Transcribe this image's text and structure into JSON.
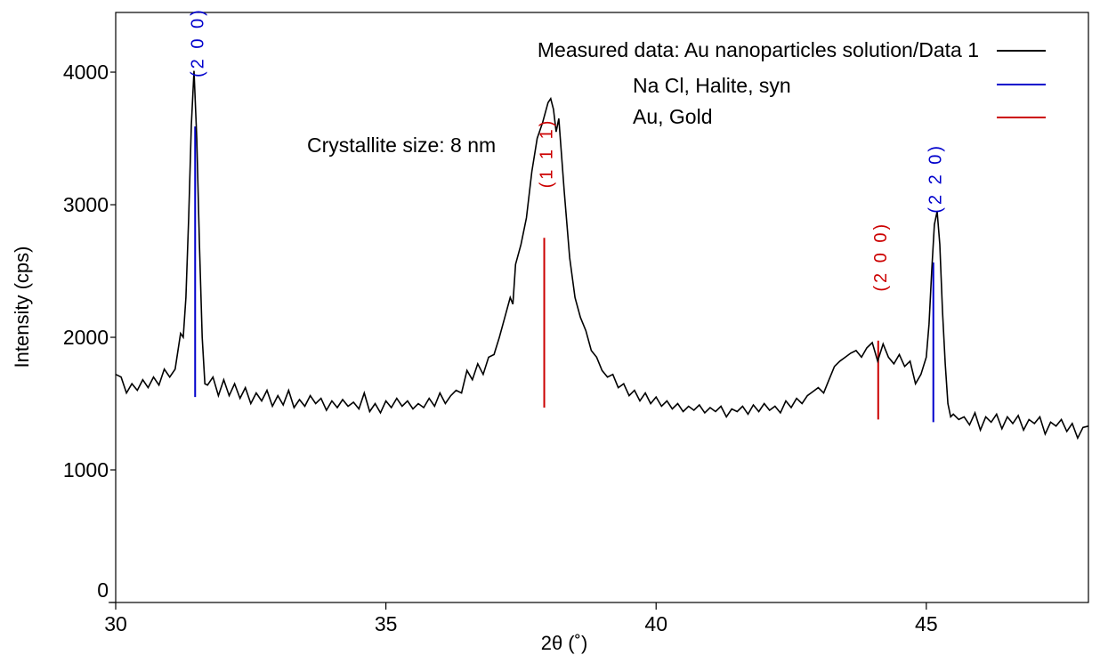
{
  "chart_data": {
    "type": "line",
    "title": "",
    "xlabel": "2θ (˚)",
    "ylabel": "Intensity (cps)",
    "xlim": [
      30,
      48
    ],
    "ylim": [
      0,
      4450
    ],
    "grid": false,
    "legend_placement": "top-right",
    "x_ticks": [
      30,
      35,
      40,
      45
    ],
    "x_tick_labels": [
      "30",
      "35",
      "40",
      "45"
    ],
    "y_ticks": [
      0,
      1000,
      2000,
      3000,
      4000
    ],
    "y_tick_labels": [
      "0",
      "1000",
      "2000",
      "3000",
      "4000"
    ],
    "annotation": "Crystallite size: 8 nm",
    "legend": [
      {
        "label": "Measured data: Au nanoparticles solution/Data 1",
        "color": "#000000"
      },
      {
        "label": "Na Cl, Halite, syn",
        "color": "#0000cc"
      },
      {
        "label": "Au, Gold",
        "color": "#cc0000"
      }
    ],
    "series": [
      {
        "name": "Measured data: Au nanoparticles solution/Data 1",
        "color": "#000000",
        "x": [
          30.0,
          30.1,
          30.2,
          30.3,
          30.4,
          30.5,
          30.6,
          30.7,
          30.8,
          30.9,
          31.0,
          31.1,
          31.2,
          31.25,
          31.3,
          31.35,
          31.4,
          31.45,
          31.5,
          31.55,
          31.6,
          31.65,
          31.7,
          31.8,
          31.9,
          32.0,
          32.1,
          32.2,
          32.3,
          32.4,
          32.5,
          32.6,
          32.7,
          32.8,
          32.9,
          33.0,
          33.1,
          33.2,
          33.3,
          33.4,
          33.5,
          33.6,
          33.7,
          33.8,
          33.9,
          34.0,
          34.1,
          34.2,
          34.3,
          34.4,
          34.5,
          34.6,
          34.7,
          34.8,
          34.9,
          35.0,
          35.1,
          35.2,
          35.3,
          35.4,
          35.5,
          35.6,
          35.7,
          35.8,
          35.9,
          36.0,
          36.1,
          36.2,
          36.3,
          36.4,
          36.5,
          36.6,
          36.7,
          36.8,
          36.9,
          37.0,
          37.1,
          37.2,
          37.3,
          37.35,
          37.4,
          37.5,
          37.6,
          37.7,
          37.8,
          37.9,
          38.0,
          38.05,
          38.1,
          38.15,
          38.2,
          38.3,
          38.4,
          38.5,
          38.6,
          38.7,
          38.8,
          38.9,
          39.0,
          39.1,
          39.2,
          39.3,
          39.4,
          39.5,
          39.6,
          39.7,
          39.8,
          39.9,
          40.0,
          40.1,
          40.2,
          40.3,
          40.4,
          40.5,
          40.6,
          40.7,
          40.8,
          40.9,
          41.0,
          41.1,
          41.2,
          41.3,
          41.4,
          41.5,
          41.6,
          41.7,
          41.8,
          41.9,
          42.0,
          42.1,
          42.2,
          42.3,
          42.4,
          42.5,
          42.6,
          42.7,
          42.8,
          42.9,
          43.0,
          43.1,
          43.2,
          43.3,
          43.4,
          43.5,
          43.6,
          43.7,
          43.8,
          43.9,
          44.0,
          44.1,
          44.2,
          44.3,
          44.4,
          44.5,
          44.6,
          44.7,
          44.8,
          44.9,
          45.0,
          45.05,
          45.1,
          45.15,
          45.2,
          45.25,
          45.3,
          45.35,
          45.4,
          45.45,
          45.5,
          45.6,
          45.7,
          45.8,
          45.9,
          46.0,
          46.1,
          46.2,
          46.3,
          46.4,
          46.5,
          46.6,
          46.7,
          46.8,
          46.9,
          47.0,
          47.1,
          47.2,
          47.3,
          47.4,
          47.5,
          47.6,
          47.7,
          47.8,
          47.9,
          48.0
        ],
        "y": [
          1720,
          1700,
          1580,
          1650,
          1600,
          1680,
          1620,
          1700,
          1640,
          1760,
          1700,
          1760,
          2030,
          2000,
          2300,
          2900,
          3600,
          4010,
          3500,
          2700,
          2000,
          1650,
          1640,
          1700,
          1560,
          1680,
          1560,
          1650,
          1540,
          1620,
          1500,
          1580,
          1520,
          1600,
          1480,
          1560,
          1490,
          1600,
          1470,
          1530,
          1480,
          1560,
          1500,
          1540,
          1450,
          1520,
          1470,
          1530,
          1480,
          1510,
          1460,
          1580,
          1440,
          1500,
          1430,
          1520,
          1470,
          1540,
          1480,
          1520,
          1460,
          1500,
          1470,
          1540,
          1480,
          1580,
          1500,
          1560,
          1600,
          1580,
          1750,
          1680,
          1800,
          1720,
          1850,
          1870,
          2000,
          2150,
          2300,
          2250,
          2550,
          2700,
          2900,
          3250,
          3500,
          3620,
          3770,
          3800,
          3720,
          3550,
          3650,
          3100,
          2600,
          2300,
          2150,
          2050,
          1900,
          1850,
          1750,
          1700,
          1720,
          1620,
          1650,
          1560,
          1600,
          1520,
          1580,
          1500,
          1550,
          1480,
          1520,
          1460,
          1500,
          1440,
          1480,
          1450,
          1490,
          1430,
          1470,
          1440,
          1480,
          1400,
          1460,
          1440,
          1480,
          1420,
          1490,
          1440,
          1500,
          1450,
          1480,
          1430,
          1520,
          1470,
          1540,
          1500,
          1560,
          1590,
          1620,
          1580,
          1680,
          1780,
          1820,
          1850,
          1880,
          1900,
          1850,
          1920,
          1960,
          1820,
          1950,
          1850,
          1800,
          1870,
          1780,
          1820,
          1650,
          1720,
          1850,
          2100,
          2500,
          2850,
          2950,
          2700,
          2200,
          1800,
          1500,
          1400,
          1420,
          1380,
          1400,
          1340,
          1430,
          1300,
          1400,
          1360,
          1420,
          1310,
          1400,
          1350,
          1410,
          1300,
          1380,
          1350,
          1400,
          1270,
          1360,
          1330,
          1380,
          1290,
          1350,
          1240,
          1320,
          1330
        ]
      }
    ],
    "reference_lines": [
      {
        "phase": "Na Cl, Halite, syn",
        "hkl": "(2 0 0)",
        "x": 31.47,
        "y_start": 1550,
        "y_end": 3590,
        "color": "#0000cc"
      },
      {
        "phase": "Au, Gold",
        "hkl": "(1 1 1)",
        "x": 37.93,
        "y_start": 1470,
        "y_end": 2750,
        "color": "#cc0000"
      },
      {
        "phase": "Au, Gold",
        "hkl": "(2 0 0)",
        "x": 44.11,
        "y_start": 1380,
        "y_end": 1975,
        "color": "#cc0000"
      },
      {
        "phase": "Na Cl, Halite, syn",
        "hkl": "(2 2 0)",
        "x": 45.13,
        "y_start": 1360,
        "y_end": 2565,
        "color": "#0000cc"
      }
    ]
  }
}
